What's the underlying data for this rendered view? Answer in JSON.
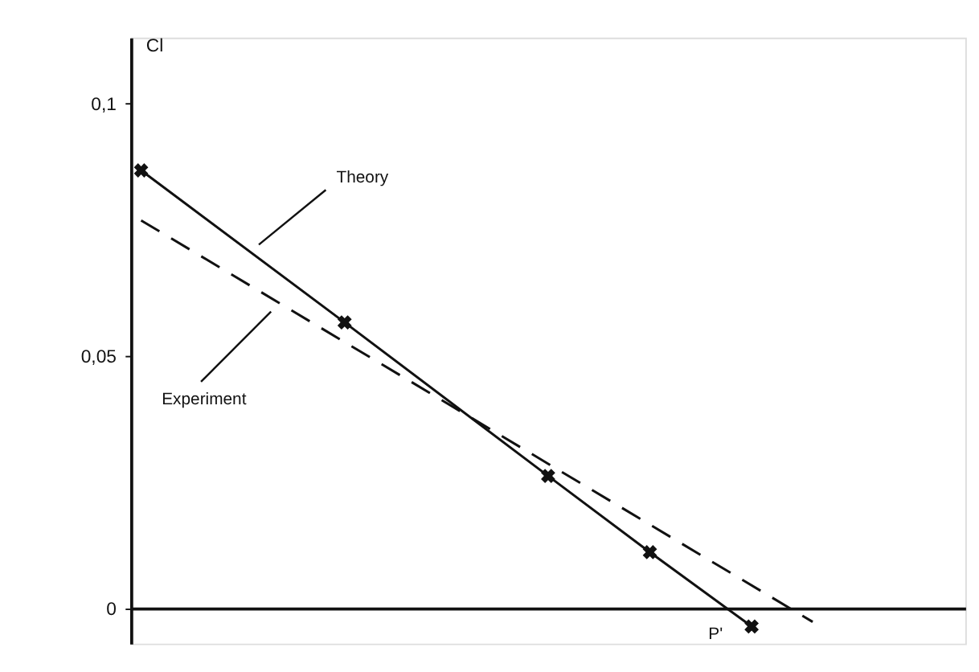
{
  "chart_data": {
    "type": "line",
    "ylabel": "Cl",
    "categories": [
      null,
      null,
      null,
      null,
      null,
      null,
      null,
      null,
      null,
      null,
      null,
      null,
      null,
      null,
      null,
      null,
      null,
      null,
      null,
      null,
      null,
      null,
      null,
      null,
      null,
      null,
      null,
      null,
      null,
      null,
      null,
      null,
      null,
      null,
      null,
      null,
      null,
      null,
      null,
      null,
      null
    ],
    "ylim": [
      -0.007,
      0.113
    ],
    "yticks": [
      {
        "value": 0,
        "label": "0"
      },
      {
        "value": 0.05,
        "label": "0,05"
      },
      {
        "value": 0.1,
        "label": "0,1"
      }
    ],
    "tick_labels": "y",
    "series": [
      {
        "values": [
          0.0867,
          null,
          null,
          null,
          null,
          null,
          null,
          null,
          null,
          null,
          0.0566,
          null,
          null,
          null,
          null,
          null,
          null,
          null,
          null,
          null,
          0.0262,
          null,
          null,
          null,
          null,
          0.0111,
          null,
          null,
          null,
          null,
          -0.0036,
          null,
          null,
          null,
          null,
          null,
          null,
          null,
          null,
          null,
          null
        ],
        "color": "#111111",
        "marker": "cross",
        "line_style": "solid"
      },
      {
        "values": [
          0.0768,
          null,
          null,
          null,
          null,
          null,
          null,
          null,
          null,
          null,
          null,
          null,
          null,
          null,
          null,
          null,
          null,
          null,
          null,
          null,
          null,
          null,
          null,
          null,
          null,
          null,
          null,
          null,
          null,
          null,
          null,
          null,
          null,
          -0.0027,
          null,
          null,
          null,
          null,
          null,
          null,
          null
        ],
        "color": "#111111",
        "marker": "none",
        "line_style": "dashed"
      }
    ],
    "annotations": [
      "Theory",
      "Experiment",
      "P'"
    ]
  }
}
